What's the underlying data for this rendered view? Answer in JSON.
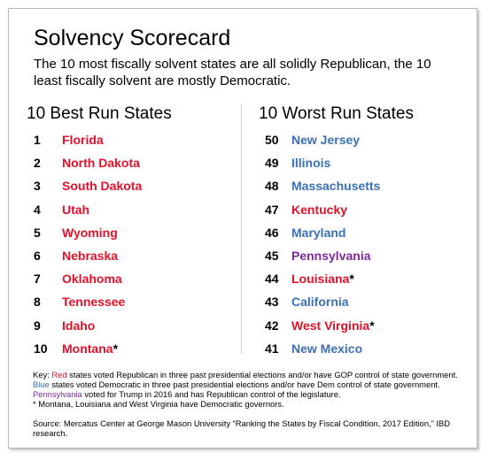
{
  "title": "Solvency Scorecard",
  "subtitle": "The 10 most fiscally solvent states are all solidly Republican, the 10 least fiscally solvent are mostly Democratic.",
  "colors": {
    "red": "#e3102a",
    "blue": "#3b6fb6",
    "purple": "#7b2a9c"
  },
  "best": {
    "heading": "10 Best Run States",
    "rows": [
      {
        "rank": "1",
        "state": "Florida",
        "party": "red",
        "mark": ""
      },
      {
        "rank": "2",
        "state": "North Dakota",
        "party": "red",
        "mark": ""
      },
      {
        "rank": "3",
        "state": "South Dakota",
        "party": "red",
        "mark": ""
      },
      {
        "rank": "4",
        "state": "Utah",
        "party": "red",
        "mark": ""
      },
      {
        "rank": "5",
        "state": "Wyoming",
        "party": "red",
        "mark": ""
      },
      {
        "rank": "6",
        "state": "Nebraska",
        "party": "red",
        "mark": ""
      },
      {
        "rank": "7",
        "state": "Oklahoma",
        "party": "red",
        "mark": ""
      },
      {
        "rank": "8",
        "state": "Tennessee",
        "party": "red",
        "mark": ""
      },
      {
        "rank": "9",
        "state": "Idaho",
        "party": "red",
        "mark": ""
      },
      {
        "rank": "10",
        "state": "Montana",
        "party": "red",
        "mark": "*"
      }
    ]
  },
  "worst": {
    "heading": "10 Worst Run States",
    "rows": [
      {
        "rank": "50",
        "state": "New Jersey",
        "party": "blue",
        "mark": ""
      },
      {
        "rank": "49",
        "state": "Illinois",
        "party": "blue",
        "mark": ""
      },
      {
        "rank": "48",
        "state": "Massachusetts",
        "party": "blue",
        "mark": ""
      },
      {
        "rank": "47",
        "state": "Kentucky",
        "party": "red",
        "mark": ""
      },
      {
        "rank": "46",
        "state": "Maryland",
        "party": "blue",
        "mark": ""
      },
      {
        "rank": "45",
        "state": "Pennsylvania",
        "party": "purple",
        "mark": ""
      },
      {
        "rank": "44",
        "state": "Louisiana",
        "party": "red",
        "mark": "*"
      },
      {
        "rank": "43",
        "state": "California",
        "party": "blue",
        "mark": ""
      },
      {
        "rank": "42",
        "state": "West Virginia",
        "party": "red",
        "mark": "*"
      },
      {
        "rank": "41",
        "state": "New Mexico",
        "party": "blue",
        "mark": ""
      }
    ]
  },
  "key": {
    "prefix": "Key: ",
    "red_word": "Red",
    "red_text": " states voted Republican in three past presidential elections and/or have GOP control of state government. ",
    "blue_word": "Blue",
    "blue_text": " states voted Democratic in three past presidential elections and/or have Dem control of state government. ",
    "purple_word": "Pennsylvania",
    "purple_text": " voted for Trump in 2016 and has Republican control of the legislature.",
    "footnote": "* Montana, Louisiana and West Virginia have Democratic governors."
  },
  "source": "Source: Mercatus Center at George Mason University  “Ranking the States by Fiscal Condition, 2017 Edition,” IBD research."
}
